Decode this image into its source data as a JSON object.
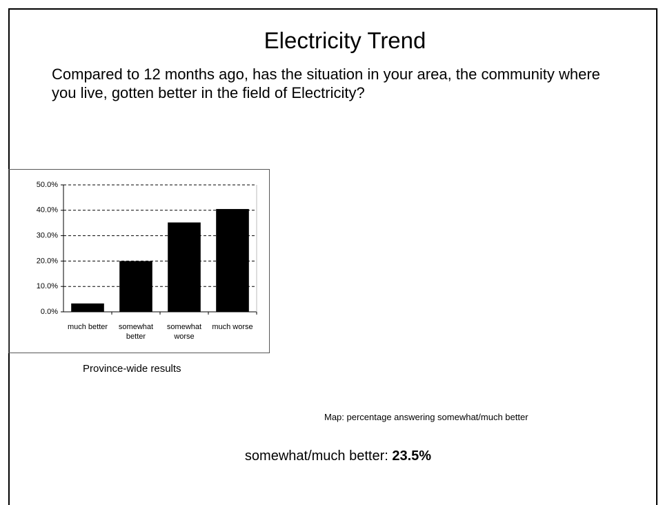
{
  "slide_title": "Electricity Trend",
  "question": "Compared to 12 months ago, has the situation in your area, the community where you live, gotten better in the field of Electricity?",
  "chart_data": {
    "type": "bar",
    "categories": [
      "much better",
      "somewhat better",
      "somewhat worse",
      "much worse"
    ],
    "values": [
      3.3,
      20,
      35.2,
      40.5
    ],
    "color": "#000000",
    "ylim": [
      0,
      50
    ],
    "yticks": [
      {
        "value": 0,
        "label": "0.0%"
      },
      {
        "value": 10,
        "label": "10.0%"
      },
      {
        "value": 20,
        "label": "20.0%"
      },
      {
        "value": 30,
        "label": "30.0%"
      },
      {
        "value": 40,
        "label": "40.0%"
      },
      {
        "value": 50,
        "label": "50.0%"
      }
    ],
    "grid": true
  },
  "chart_caption": "Province-wide results",
  "map_note": "Map: percentage answering somewhat/much better",
  "summary": {
    "label": "somewhat/much better:",
    "value": "23.5%"
  }
}
